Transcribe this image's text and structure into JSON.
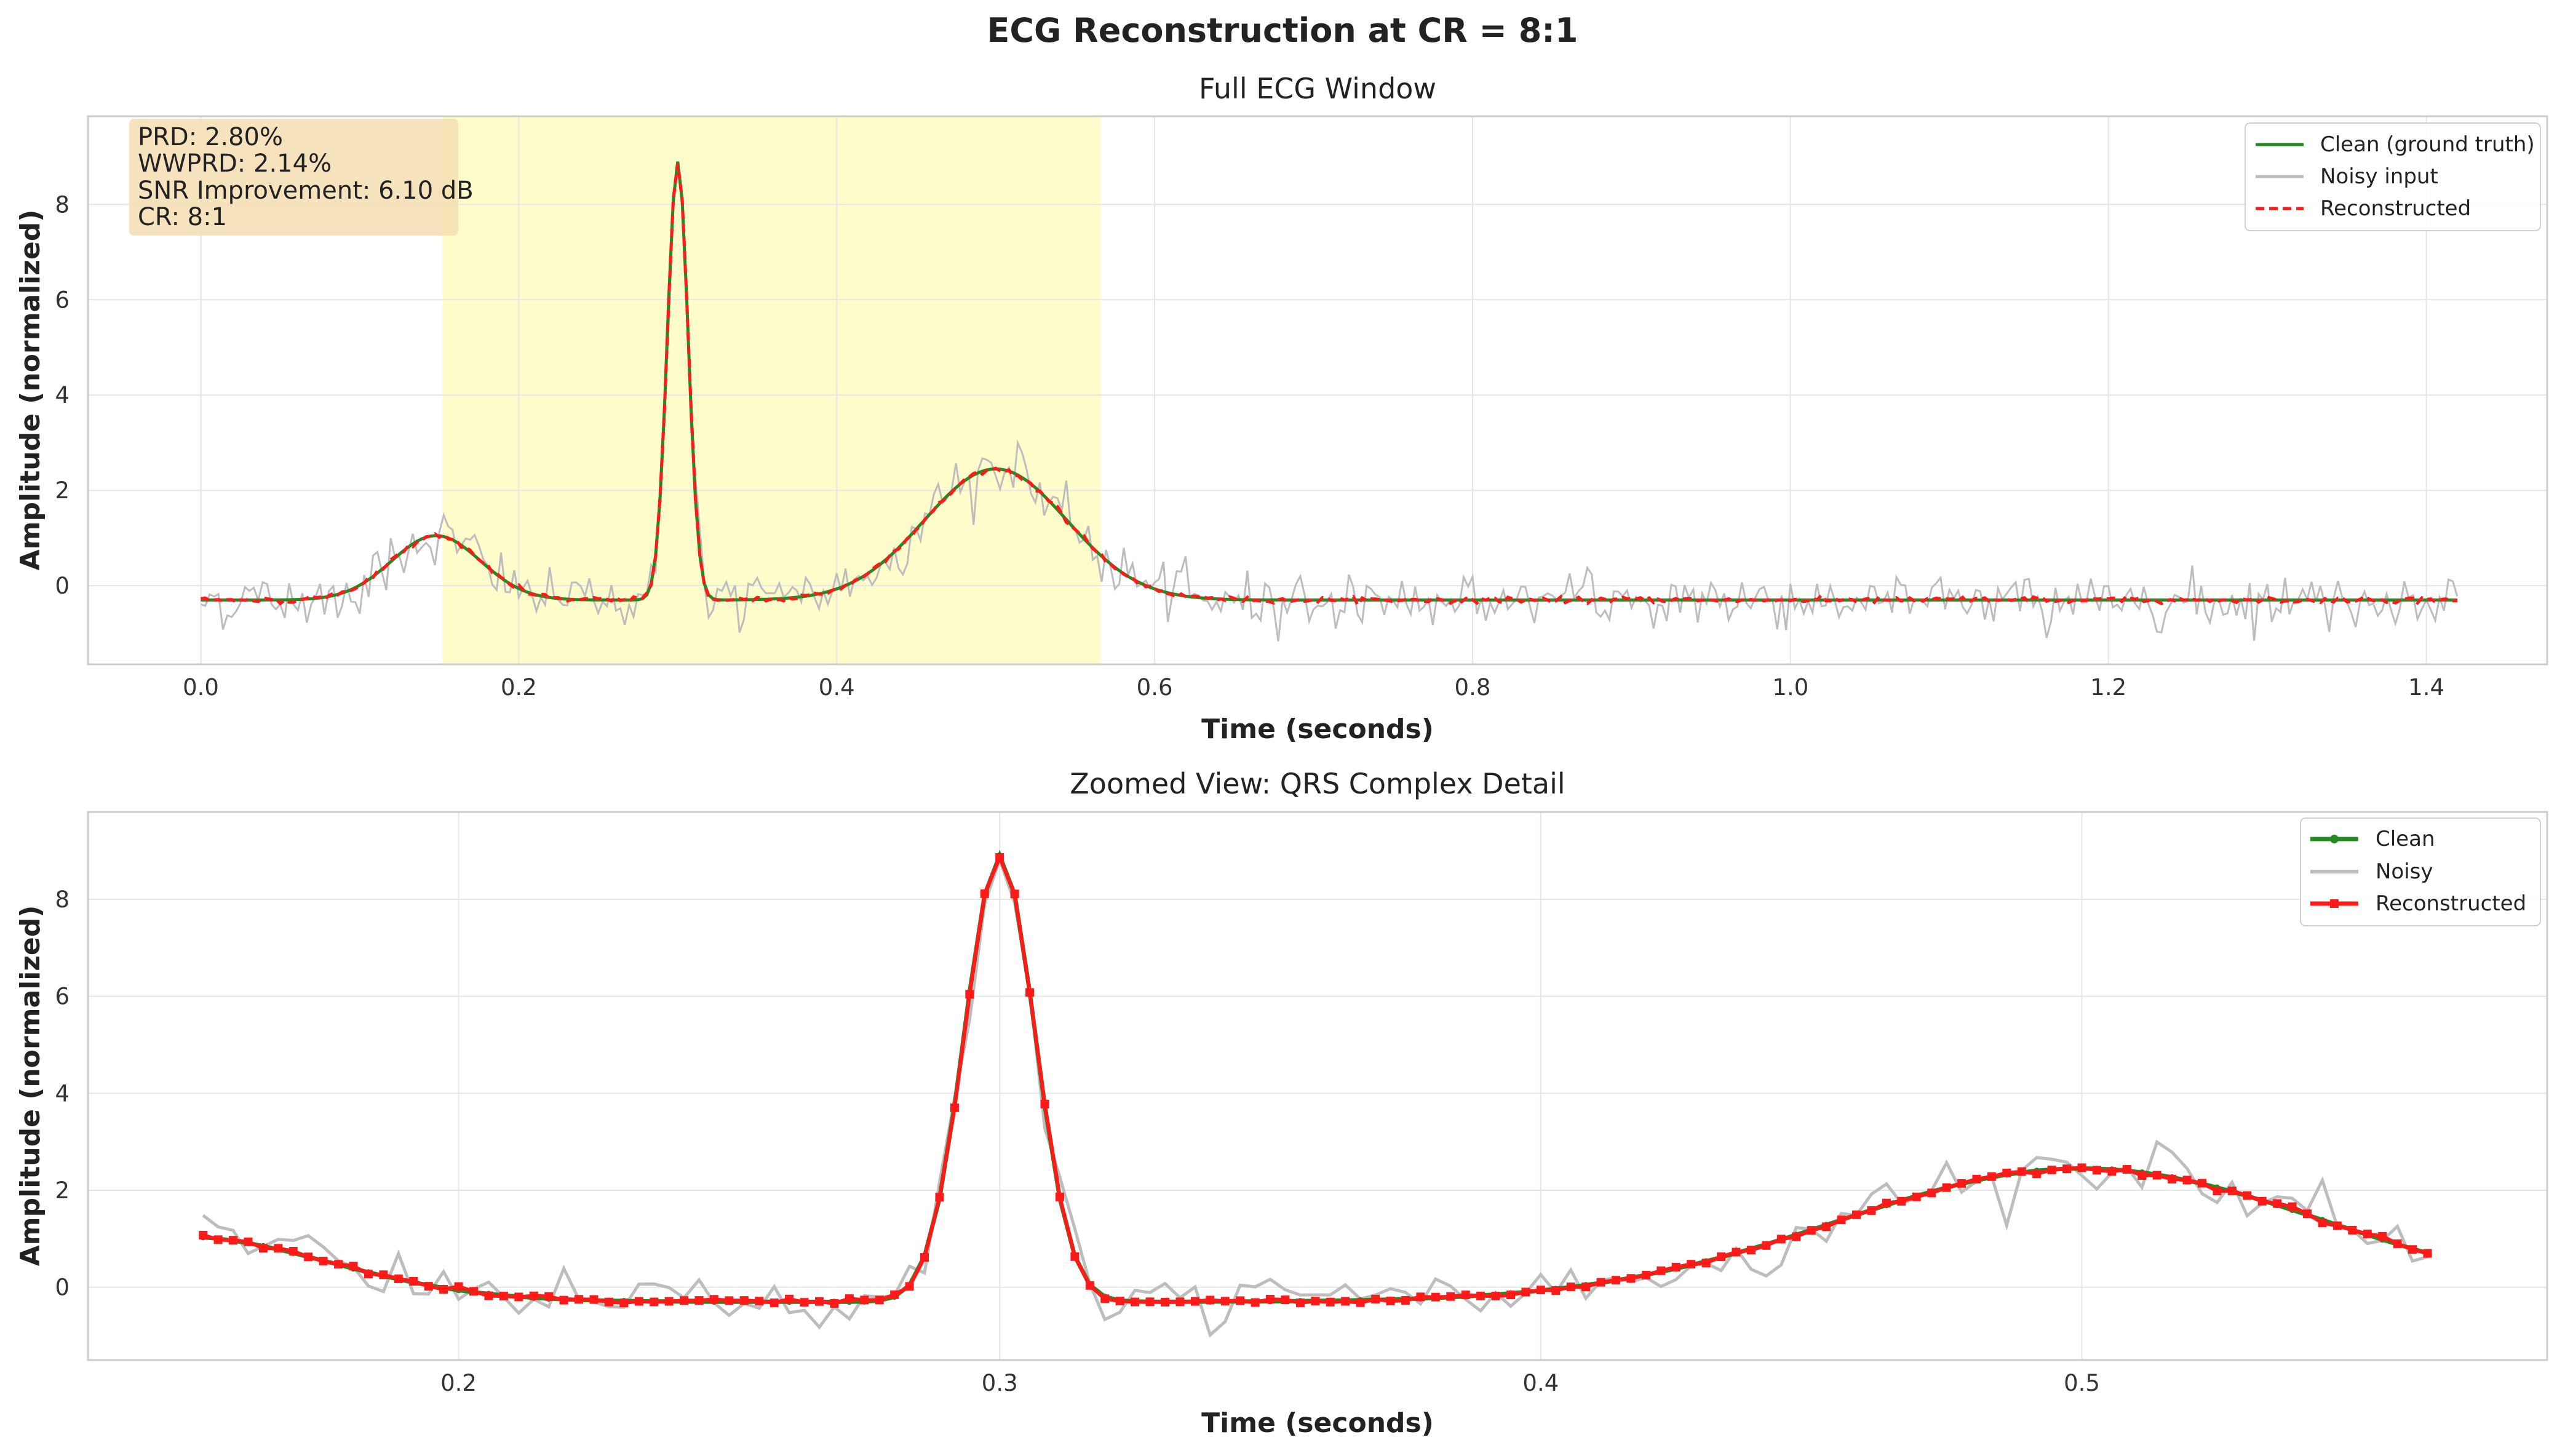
{
  "figure": {
    "suptitle": "ECG Reconstruction at CR = 8:1"
  },
  "chart_data": [
    {
      "type": "line",
      "title": "Full ECG Window",
      "xlabel": "Time (seconds)",
      "ylabel": "Amplitude (normalized)",
      "xlim": [
        -0.071,
        1.476
      ],
      "ylim": [
        -1.65,
        9.85
      ],
      "xticks": [
        0.0,
        0.2,
        0.4,
        0.6,
        0.8,
        1.0,
        1.2,
        1.4
      ],
      "xtick_labels": [
        "0.0",
        "0.2",
        "0.4",
        "0.6",
        "0.8",
        "1.0",
        "1.2",
        "1.4"
      ],
      "yticks": [
        0,
        2,
        4,
        6,
        8
      ],
      "ytick_labels": [
        "0",
        "2",
        "4",
        "6",
        "8"
      ],
      "grid": true,
      "legend_position": "upper right",
      "highlight_region": {
        "x0": 0.152,
        "x1": 0.566,
        "color": "#fffcc8"
      },
      "metrics_box": {
        "lines": [
          "PRD: 2.80%",
          "WWPRD: 2.14%",
          "SNR Improvement: 6.10 dB",
          "CR: 8:1"
        ],
        "background": "#f5deb3"
      },
      "x_range": [
        0.0,
        1.42
      ],
      "series": [
        {
          "name": "Clean (ground truth)",
          "color": "#228b22",
          "style": "solid"
        },
        {
          "name": "Noisy input",
          "color": "#bdbdbd",
          "style": "solid"
        },
        {
          "name": "Reconstructed",
          "color": "#ff1a1a",
          "style": "dashed"
        }
      ],
      "waveform": {
        "baseline": -0.3,
        "p_wave": {
          "center": 0.148,
          "amplitude": 1.35
        },
        "qrs": {
          "center": 0.3,
          "amplitude": 9.2
        },
        "t_wave": {
          "center": 0.5,
          "amplitude": 2.75
        }
      }
    },
    {
      "type": "line",
      "title": "Zoomed View: QRS Complex Detail",
      "xlabel": "Time (seconds)",
      "ylabel": "Amplitude (normalized)",
      "xlim": [
        0.1315,
        0.586
      ],
      "ylim": [
        -1.5,
        9.8
      ],
      "xticks": [
        0.2,
        0.3,
        0.4,
        0.5
      ],
      "xtick_labels": [
        "0.2",
        "0.3",
        "0.4",
        "0.5"
      ],
      "yticks": [
        0,
        2,
        4,
        6,
        8
      ],
      "ytick_labels": [
        "0",
        "2",
        "4",
        "6",
        "8"
      ],
      "grid": true,
      "legend_position": "upper right",
      "x_range": [
        0.152,
        0.566
      ],
      "series": [
        {
          "name": "Clean",
          "color": "#228b22",
          "style": "solid-marker"
        },
        {
          "name": "Noisy",
          "color": "#bdbdbd",
          "style": "solid"
        },
        {
          "name": "Reconstructed",
          "color": "#ff1a1a",
          "style": "square-marker"
        }
      ]
    }
  ]
}
